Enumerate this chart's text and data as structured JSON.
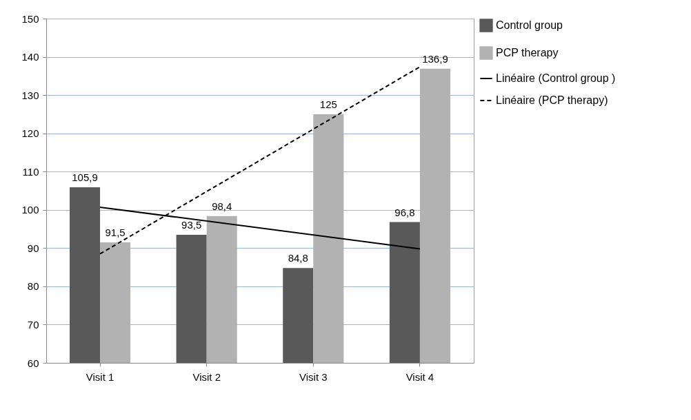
{
  "chart_data": {
    "type": "bar",
    "categories": [
      "Visit 1",
      "Visit 2",
      "Visit 3",
      "Visit 4"
    ],
    "series": [
      {
        "name": "Control group",
        "color": "#595959",
        "values": [
          105.9,
          93.5,
          84.8,
          96.8
        ],
        "value_labels": [
          "105,9",
          "93,5",
          "84,8",
          "96,8"
        ]
      },
      {
        "name": "PCP therapy",
        "color": "#b2b2b2",
        "values": [
          91.5,
          98.4,
          125,
          136.9
        ],
        "value_labels": [
          "91,5",
          "98,4",
          "125",
          "136,9"
        ]
      },
      {
        "name": "Linéaire (Control group )",
        "type": "line",
        "color": "#000000",
        "line_style": "solid",
        "x": [
          "Visit 1",
          "Visit 4"
        ],
        "values": [
          100.7,
          89.8
        ]
      },
      {
        "name": "Linéaire (PCP therapy)",
        "type": "line",
        "color": "#000000",
        "line_style": "dashed",
        "x": [
          "Visit 1",
          "Visit 4"
        ],
        "values": [
          88.5,
          137.4
        ]
      }
    ],
    "ylim": [
      60,
      150
    ],
    "yticks": [
      60,
      70,
      80,
      90,
      100,
      110,
      120,
      130,
      140,
      150
    ],
    "grid": "y",
    "legend": "top right"
  }
}
